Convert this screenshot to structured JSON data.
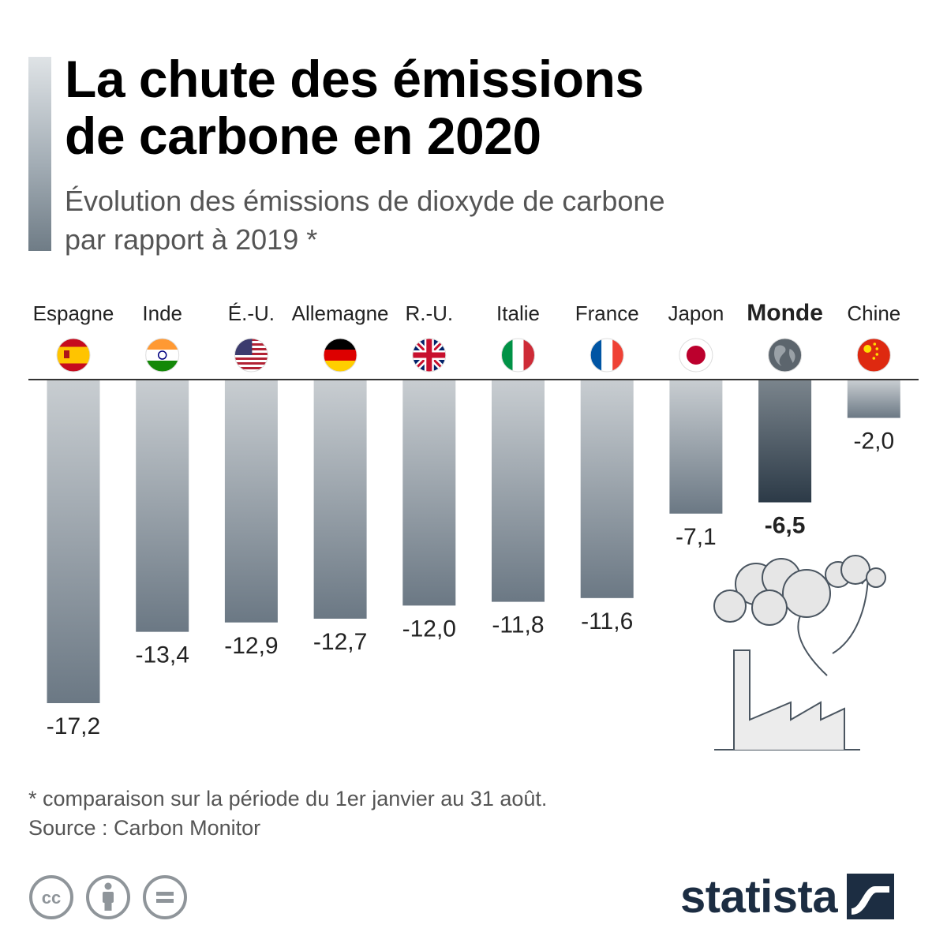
{
  "title_line1": "La chute des émissions",
  "title_line2": "de carbone en 2020",
  "subtitle_line1": "Évolution des émissions de dioxyde de carbone",
  "subtitle_line2": "par rapport à 2019 *",
  "footnote": "* comparaison sur la période du 1er janvier au 31 août.",
  "source": "Source : Carbon Monitor",
  "brand": "statista",
  "colors": {
    "bar_light": "#c8cdd1",
    "bar_dark": "#6b7884",
    "highlight_top": "#7a848c",
    "highlight_bottom": "#2c3a47",
    "axis": "#333333",
    "brand": "#1c2d42"
  },
  "license_icons": [
    "creative-commons-icon",
    "attribution-icon",
    "no-derivatives-icon"
  ],
  "chart_data": {
    "type": "bar",
    "categories": [
      "Espagne",
      "Inde",
      "É.-U.",
      "Allemagne",
      "R.-U.",
      "Italie",
      "France",
      "Japon",
      "Monde",
      "Chine"
    ],
    "values": [
      -17.2,
      -13.4,
      -12.9,
      -12.7,
      -12.0,
      -11.8,
      -11.6,
      -7.1,
      -6.5,
      -2.0
    ],
    "value_labels": [
      "-17,2",
      "-13,4",
      "-12,9",
      "-12,7",
      "-12,0",
      "-11,8",
      "-11,6",
      "-7,1",
      "-6,5",
      "-2,0"
    ],
    "flags": [
      "spain-flag-icon",
      "india-flag-icon",
      "usa-flag-icon",
      "germany-flag-icon",
      "uk-flag-icon",
      "italy-flag-icon",
      "france-flag-icon",
      "japan-flag-icon",
      "globe-icon",
      "china-flag-icon"
    ],
    "highlight": "Monde",
    "ylim": [
      -17.2,
      0
    ]
  }
}
